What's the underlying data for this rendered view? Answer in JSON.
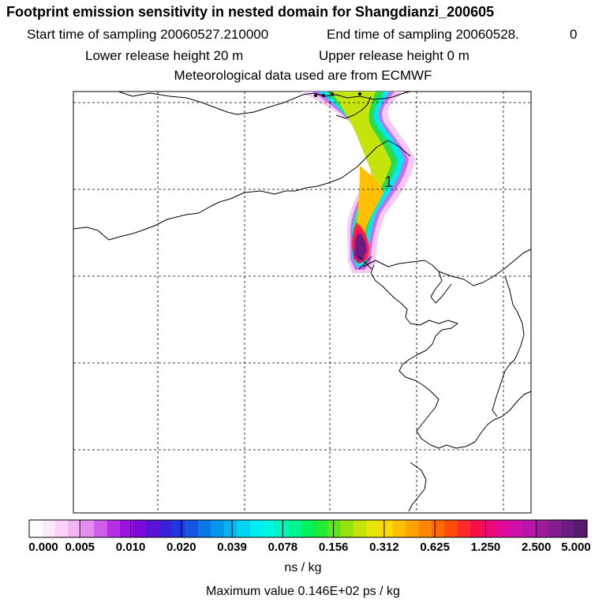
{
  "header": {
    "title": "Footprint emission sensitivity in nested domain for Shangdianzi_200605",
    "start_label": "Start time of sampling 20060527.210000",
    "end_label": "End time of sampling 20060528.",
    "end_value": "0",
    "lower_label": "Lower release height   20 m",
    "upper_label": "Upper release height    0 m",
    "met_label": "Meteorological data used are from ECMWF"
  },
  "map": {
    "plume_label": "1",
    "colors": {
      "coast": "#000000",
      "grid": "#000000"
    }
  },
  "colorbar": {
    "unit": "ns / kg",
    "tick_labels": [
      "0.000",
      "0.005",
      "0.010",
      "0.020",
      "0.039",
      "0.078",
      "0.156",
      "0.312",
      "0.625",
      "1.250",
      "2.500",
      "5.000"
    ],
    "colors": [
      "#ffffff",
      "#fde8fd",
      "#fbd0fb",
      "#f2b5f4",
      "#e48cef",
      "#d05cea",
      "#b82fe4",
      "#9b11df",
      "#7a0bd8",
      "#5a12d6",
      "#3a21d9",
      "#2136de",
      "#1456e3",
      "#0a77e8",
      "#0696ec",
      "#04b5f0",
      "#02d3f3",
      "#00ecf3",
      "#00f6e0",
      "#00f5b9",
      "#00f490",
      "#00f060",
      "#22ec33",
      "#5ee51b",
      "#95e20f",
      "#c4e30a",
      "#e6e507",
      "#fbd900",
      "#fec000",
      "#fea400",
      "#fe8700",
      "#fe6a00",
      "#fd4c0c",
      "#fc2a2a",
      "#f5104a",
      "#ec0a78",
      "#e00a9a",
      "#d00fa8",
      "#b916a8",
      "#a01a9e",
      "#861c90",
      "#6b1c80",
      "#551a6a"
    ]
  },
  "footer": {
    "max_value": "Maximum value  0.146E+02 ps / kg"
  }
}
